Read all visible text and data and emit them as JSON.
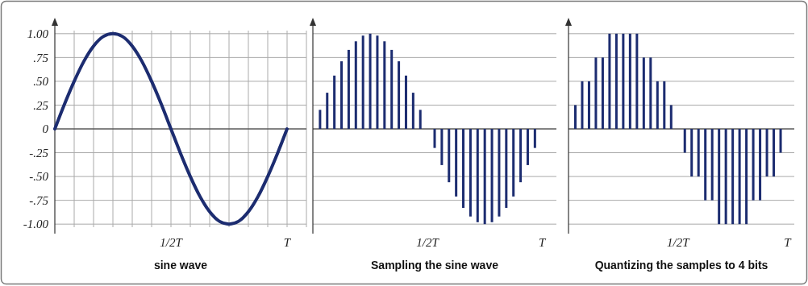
{
  "chart_data": [
    {
      "type": "line",
      "xlabel": "sine wave",
      "grid": true,
      "marker": "none",
      "line_style": "solid",
      "categories": [
        null,
        null,
        null,
        null,
        null,
        null,
        null,
        null,
        null,
        null,
        null,
        null,
        "1/2T",
        null,
        null,
        null,
        null,
        null,
        null,
        null,
        null,
        null,
        null,
        null,
        "T"
      ],
      "series": [
        {
          "color": "#1c2c70",
          "values": [
            0,
            0.26,
            0.5,
            0.71,
            0.87,
            0.97,
            1,
            0.97,
            0.87,
            0.71,
            0.5,
            0.26,
            0,
            -0.26,
            -0.5,
            -0.71,
            -0.87,
            -0.97,
            -1,
            -0.97,
            -0.87,
            -0.71,
            -0.5,
            -0.26,
            0
          ]
        }
      ],
      "ylim": [
        -1.1,
        1.1
      ],
      "yticks": [
        {
          "value": 1,
          "label": "1.00"
        },
        {
          "value": 0.75,
          "label": ".75"
        },
        {
          "value": 0.5,
          "label": ".50"
        },
        {
          "value": 0.25,
          "label": ".25"
        },
        {
          "value": 0,
          "label": "0"
        },
        {
          "value": -0.25,
          "label": "-.25"
        },
        {
          "value": -0.5,
          "label": "-.50"
        },
        {
          "value": -0.75,
          "label": "-.75"
        },
        {
          "value": -1,
          "label": "-1.00"
        }
      ]
    },
    {
      "type": "bar",
      "xlabel": "Sampling the sine wave",
      "grid": "y",
      "tick_labels": "x",
      "categories": [
        null,
        null,
        null,
        null,
        null,
        null,
        null,
        null,
        null,
        null,
        null,
        null,
        null,
        null,
        null,
        null,
        "1/2T",
        null,
        null,
        null,
        null,
        null,
        null,
        null,
        null,
        null,
        null,
        null,
        null,
        null,
        null,
        null,
        "T"
      ],
      "series": [
        {
          "color": "#1c2c70",
          "values": [
            null,
            0.2,
            0.38,
            0.56,
            0.71,
            0.83,
            0.92,
            0.98,
            1,
            0.98,
            0.92,
            0.83,
            0.71,
            0.56,
            0.38,
            0.2,
            null,
            -0.2,
            -0.38,
            -0.56,
            -0.71,
            -0.83,
            -0.92,
            -0.98,
            -1,
            -0.98,
            -0.92,
            -0.83,
            -0.71,
            -0.56,
            -0.38,
            -0.2,
            null
          ]
        }
      ],
      "ylim": [
        -1.1,
        1.1
      ],
      "yticks": [
        {
          "value": 1,
          "label": null
        },
        {
          "value": 0.75,
          "label": null
        },
        {
          "value": 0.5,
          "label": null
        },
        {
          "value": 0.25,
          "label": null
        },
        {
          "value": 0,
          "label": null
        },
        {
          "value": -0.25,
          "label": null
        },
        {
          "value": -0.5,
          "label": null
        },
        {
          "value": -0.75,
          "label": null
        },
        {
          "value": -1,
          "label": null
        }
      ]
    },
    {
      "type": "bar",
      "xlabel": "Quantizing the samples to 4 bits",
      "grid": "y",
      "tick_labels": "x",
      "categories": [
        null,
        null,
        null,
        null,
        null,
        null,
        null,
        null,
        null,
        null,
        null,
        null,
        null,
        null,
        null,
        null,
        "1/2T",
        null,
        null,
        null,
        null,
        null,
        null,
        null,
        null,
        null,
        null,
        null,
        null,
        null,
        null,
        null,
        "T"
      ],
      "series": [
        {
          "color": "#1c2c70",
          "values": [
            null,
            0.25,
            0.5,
            0.5,
            0.75,
            0.75,
            1,
            1,
            1,
            1,
            1,
            0.75,
            0.75,
            0.5,
            0.5,
            0.25,
            null,
            -0.25,
            -0.5,
            -0.5,
            -0.75,
            -0.75,
            -1,
            -1,
            -1,
            -1,
            -1,
            -0.75,
            -0.75,
            -0.5,
            -0.5,
            -0.25,
            null
          ]
        }
      ],
      "ylim": [
        -1.1,
        1.1
      ],
      "yticks": [
        {
          "value": 1,
          "label": null
        },
        {
          "value": 0.75,
          "label": null
        },
        {
          "value": 0.5,
          "label": null
        },
        {
          "value": 0.25,
          "label": null
        },
        {
          "value": 0,
          "label": null
        },
        {
          "value": -0.25,
          "label": null
        },
        {
          "value": -0.5,
          "label": null
        },
        {
          "value": -0.75,
          "label": null
        },
        {
          "value": -1,
          "label": null
        }
      ]
    }
  ]
}
